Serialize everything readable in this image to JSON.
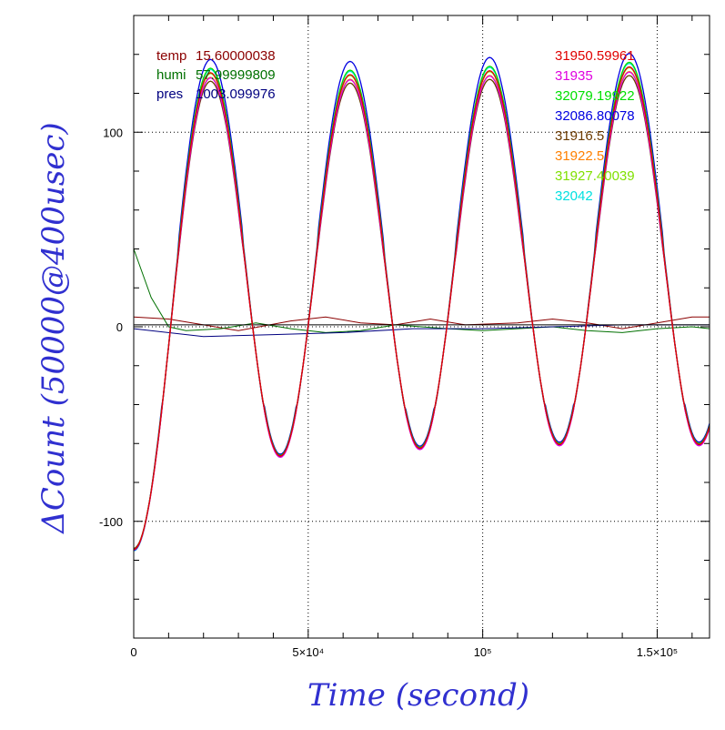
{
  "chart_data": {
    "type": "line",
    "xlabel": "Time (second)",
    "ylabel": "ΔCount (50000@400usec)",
    "xlim": [
      0,
      165000
    ],
    "ylim": [
      -160,
      160
    ],
    "x_ticks": [
      {
        "value": 0,
        "label": "0"
      },
      {
        "value": 50000,
        "label": "5×10⁴"
      },
      {
        "value": 100000,
        "label": "10⁵"
      },
      {
        "value": 150000,
        "label": "1.5×10⁵"
      }
    ],
    "y_ticks": [
      {
        "value": -100,
        "label": "-100"
      },
      {
        "value": 0,
        "label": "0"
      },
      {
        "value": 100,
        "label": "100"
      }
    ],
    "grid": "dotted lines at labeled ticks",
    "env_labels": [
      {
        "name": "temp",
        "value": "15.60000038",
        "color": "#8b0000"
      },
      {
        "name": "humi",
        "value": "57.99999809",
        "color": "#007000"
      },
      {
        "name": "pres",
        "value": "1003.099976",
        "color": "#000080"
      }
    ],
    "series_labels": [
      {
        "label": "31950.59961",
        "color": "#e00000"
      },
      {
        "label": "31935",
        "color": "#e000e0"
      },
      {
        "label": "32079.19922",
        "color": "#00e000"
      },
      {
        "label": "32086.80078",
        "color": "#0000e0"
      },
      {
        "label": "31916.5",
        "color": "#6b3a00"
      },
      {
        "label": "31922.5",
        "color": "#ff8000"
      },
      {
        "label": "31927.40039",
        "color": "#80e000"
      },
      {
        "label": "32042",
        "color": "#00e0e0"
      }
    ],
    "oscillation": {
      "period_s": 40000,
      "first_peak_x": 22000,
      "peaks": [
        [
          22000,
          130
        ],
        [
          62000,
          129
        ],
        [
          102000,
          131
        ],
        [
          142000,
          133
        ]
      ],
      "troughs": [
        [
          42000,
          -67
        ],
        [
          82000,
          -63
        ],
        [
          122000,
          -61
        ],
        [
          162000,
          -61
        ]
      ],
      "start_value_at_0": -115
    },
    "environment_series": [
      {
        "name": "temp",
        "color": "#8b0000",
        "points": [
          [
            0,
            5
          ],
          [
            10000,
            4
          ],
          [
            20000,
            1
          ],
          [
            30000,
            -2
          ],
          [
            45000,
            3
          ],
          [
            55000,
            5
          ],
          [
            65000,
            2
          ],
          [
            75000,
            1
          ],
          [
            85000,
            4
          ],
          [
            95000,
            1
          ],
          [
            110000,
            2
          ],
          [
            120000,
            4
          ],
          [
            130000,
            2
          ],
          [
            140000,
            -1
          ],
          [
            150000,
            2
          ],
          [
            160000,
            5
          ],
          [
            165000,
            5
          ]
        ]
      },
      {
        "name": "humi",
        "color": "#007000",
        "points": [
          [
            0,
            40
          ],
          [
            5000,
            15
          ],
          [
            10000,
            0
          ],
          [
            15000,
            -2
          ],
          [
            25000,
            -1
          ],
          [
            35000,
            2
          ],
          [
            45000,
            -1
          ],
          [
            55000,
            -3
          ],
          [
            65000,
            -2
          ],
          [
            75000,
            1
          ],
          [
            90000,
            -1
          ],
          [
            100000,
            -2
          ],
          [
            110000,
            -1
          ],
          [
            120000,
            0
          ],
          [
            130000,
            -2
          ],
          [
            140000,
            -3
          ],
          [
            150000,
            -1
          ],
          [
            160000,
            0
          ],
          [
            165000,
            -1
          ]
        ]
      },
      {
        "name": "pres",
        "color": "#000080",
        "points": [
          [
            0,
            -1
          ],
          [
            20000,
            -5
          ],
          [
            40000,
            -4
          ],
          [
            60000,
            -3
          ],
          [
            80000,
            -1
          ],
          [
            100000,
            -1
          ],
          [
            120000,
            0
          ],
          [
            140000,
            1
          ],
          [
            160000,
            1
          ],
          [
            165000,
            1
          ]
        ]
      },
      {
        "name": "reference",
        "color": "#000000",
        "points": [
          [
            0,
            1
          ],
          [
            165000,
            1
          ]
        ]
      }
    ]
  }
}
